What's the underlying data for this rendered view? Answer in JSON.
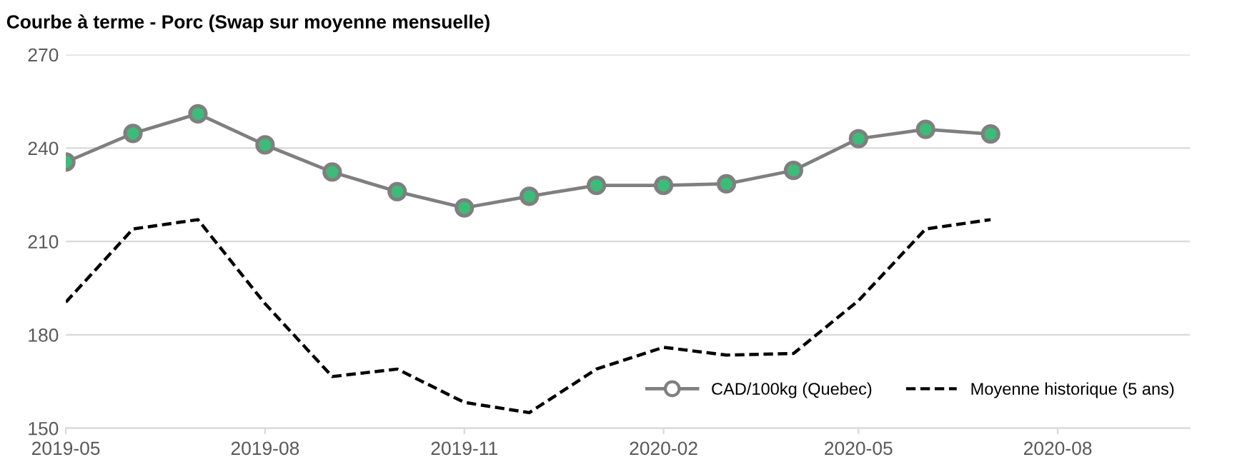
{
  "chart_data": {
    "type": "line",
    "title": "Courbe à terme - Porc (Swap sur moyenne mensuelle)",
    "x": [
      "2019-05",
      "2019-06",
      "2019-07",
      "2019-08",
      "2019-09",
      "2019-10",
      "2019-11",
      "2019-12",
      "2020-01",
      "2020-02",
      "2020-03",
      "2020-04",
      "2020-05",
      "2020-06",
      "2020-07"
    ],
    "series": [
      {
        "name": "CAD/100kg (Quebec)",
        "color": "#7f7f7f",
        "colors": [
          "#3dbb78",
          "#3dbb78",
          "#3dbb78",
          "#3dbb78",
          "#3dbb78",
          "#3dbb78",
          "#3dbb78",
          "#3dbb78",
          "#3dbb78",
          "#3dbb78",
          "#3dbb78",
          "#3dbb78",
          "#3dbb78",
          "#3dbb78",
          "#3dbb78"
        ],
        "marker": "circle",
        "line_style": "solid",
        "values": [
          235.5,
          244.7,
          251,
          241,
          232.3,
          226,
          220.8,
          224.5,
          228,
          228,
          228.5,
          232.8,
          243,
          246,
          244.5
        ]
      },
      {
        "name": "Moyenne historique (5 ans)",
        "color": "#000000",
        "marker": "none",
        "line_style": "dashed",
        "values": [
          190.5,
          214,
          217,
          190,
          166.6,
          169,
          158.3,
          155,
          169,
          176,
          173.5,
          174,
          191,
          214,
          217
        ]
      }
    ],
    "xlim": [
      "2019-05",
      "2020-10"
    ],
    "xticks": [
      "2019-05",
      "2019-08",
      "2019-11",
      "2020-02",
      "2020-05",
      "2020-08"
    ],
    "ylim": [
      150,
      270
    ],
    "yticks": [
      150,
      180,
      210,
      240,
      270
    ],
    "grid": "y",
    "legend": "bottom right"
  }
}
